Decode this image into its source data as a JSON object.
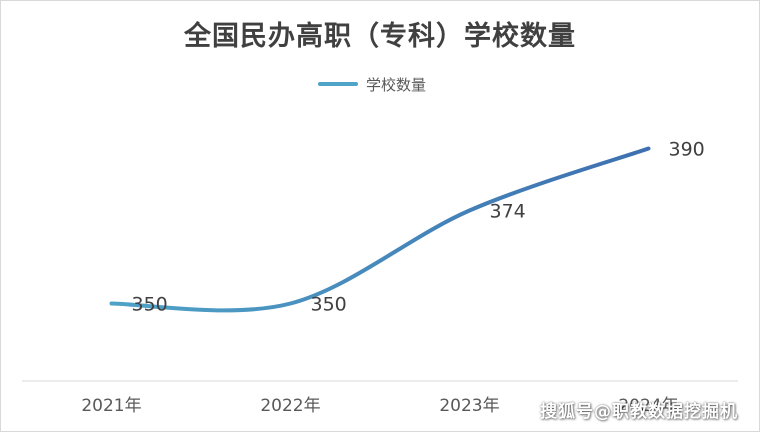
{
  "chart_data": {
    "type": "line",
    "title": "全国民办高职（专科）学校数量",
    "categories": [
      "2021年",
      "2022年",
      "2023年",
      "2024年"
    ],
    "series": [
      {
        "name": "学校数量",
        "values": [
          350,
          350,
          374,
          390
        ]
      }
    ],
    "ylim": [
      330,
      410
    ],
    "legend_position": "top-center",
    "grid": false,
    "smooth": true,
    "colors": {
      "line_start": "#4fa3c7",
      "line_end": "#3e6fb0",
      "axis": "#d9d9d9",
      "label": "#404040"
    }
  },
  "watermark": "搜狐号@职教数据挖掘机"
}
